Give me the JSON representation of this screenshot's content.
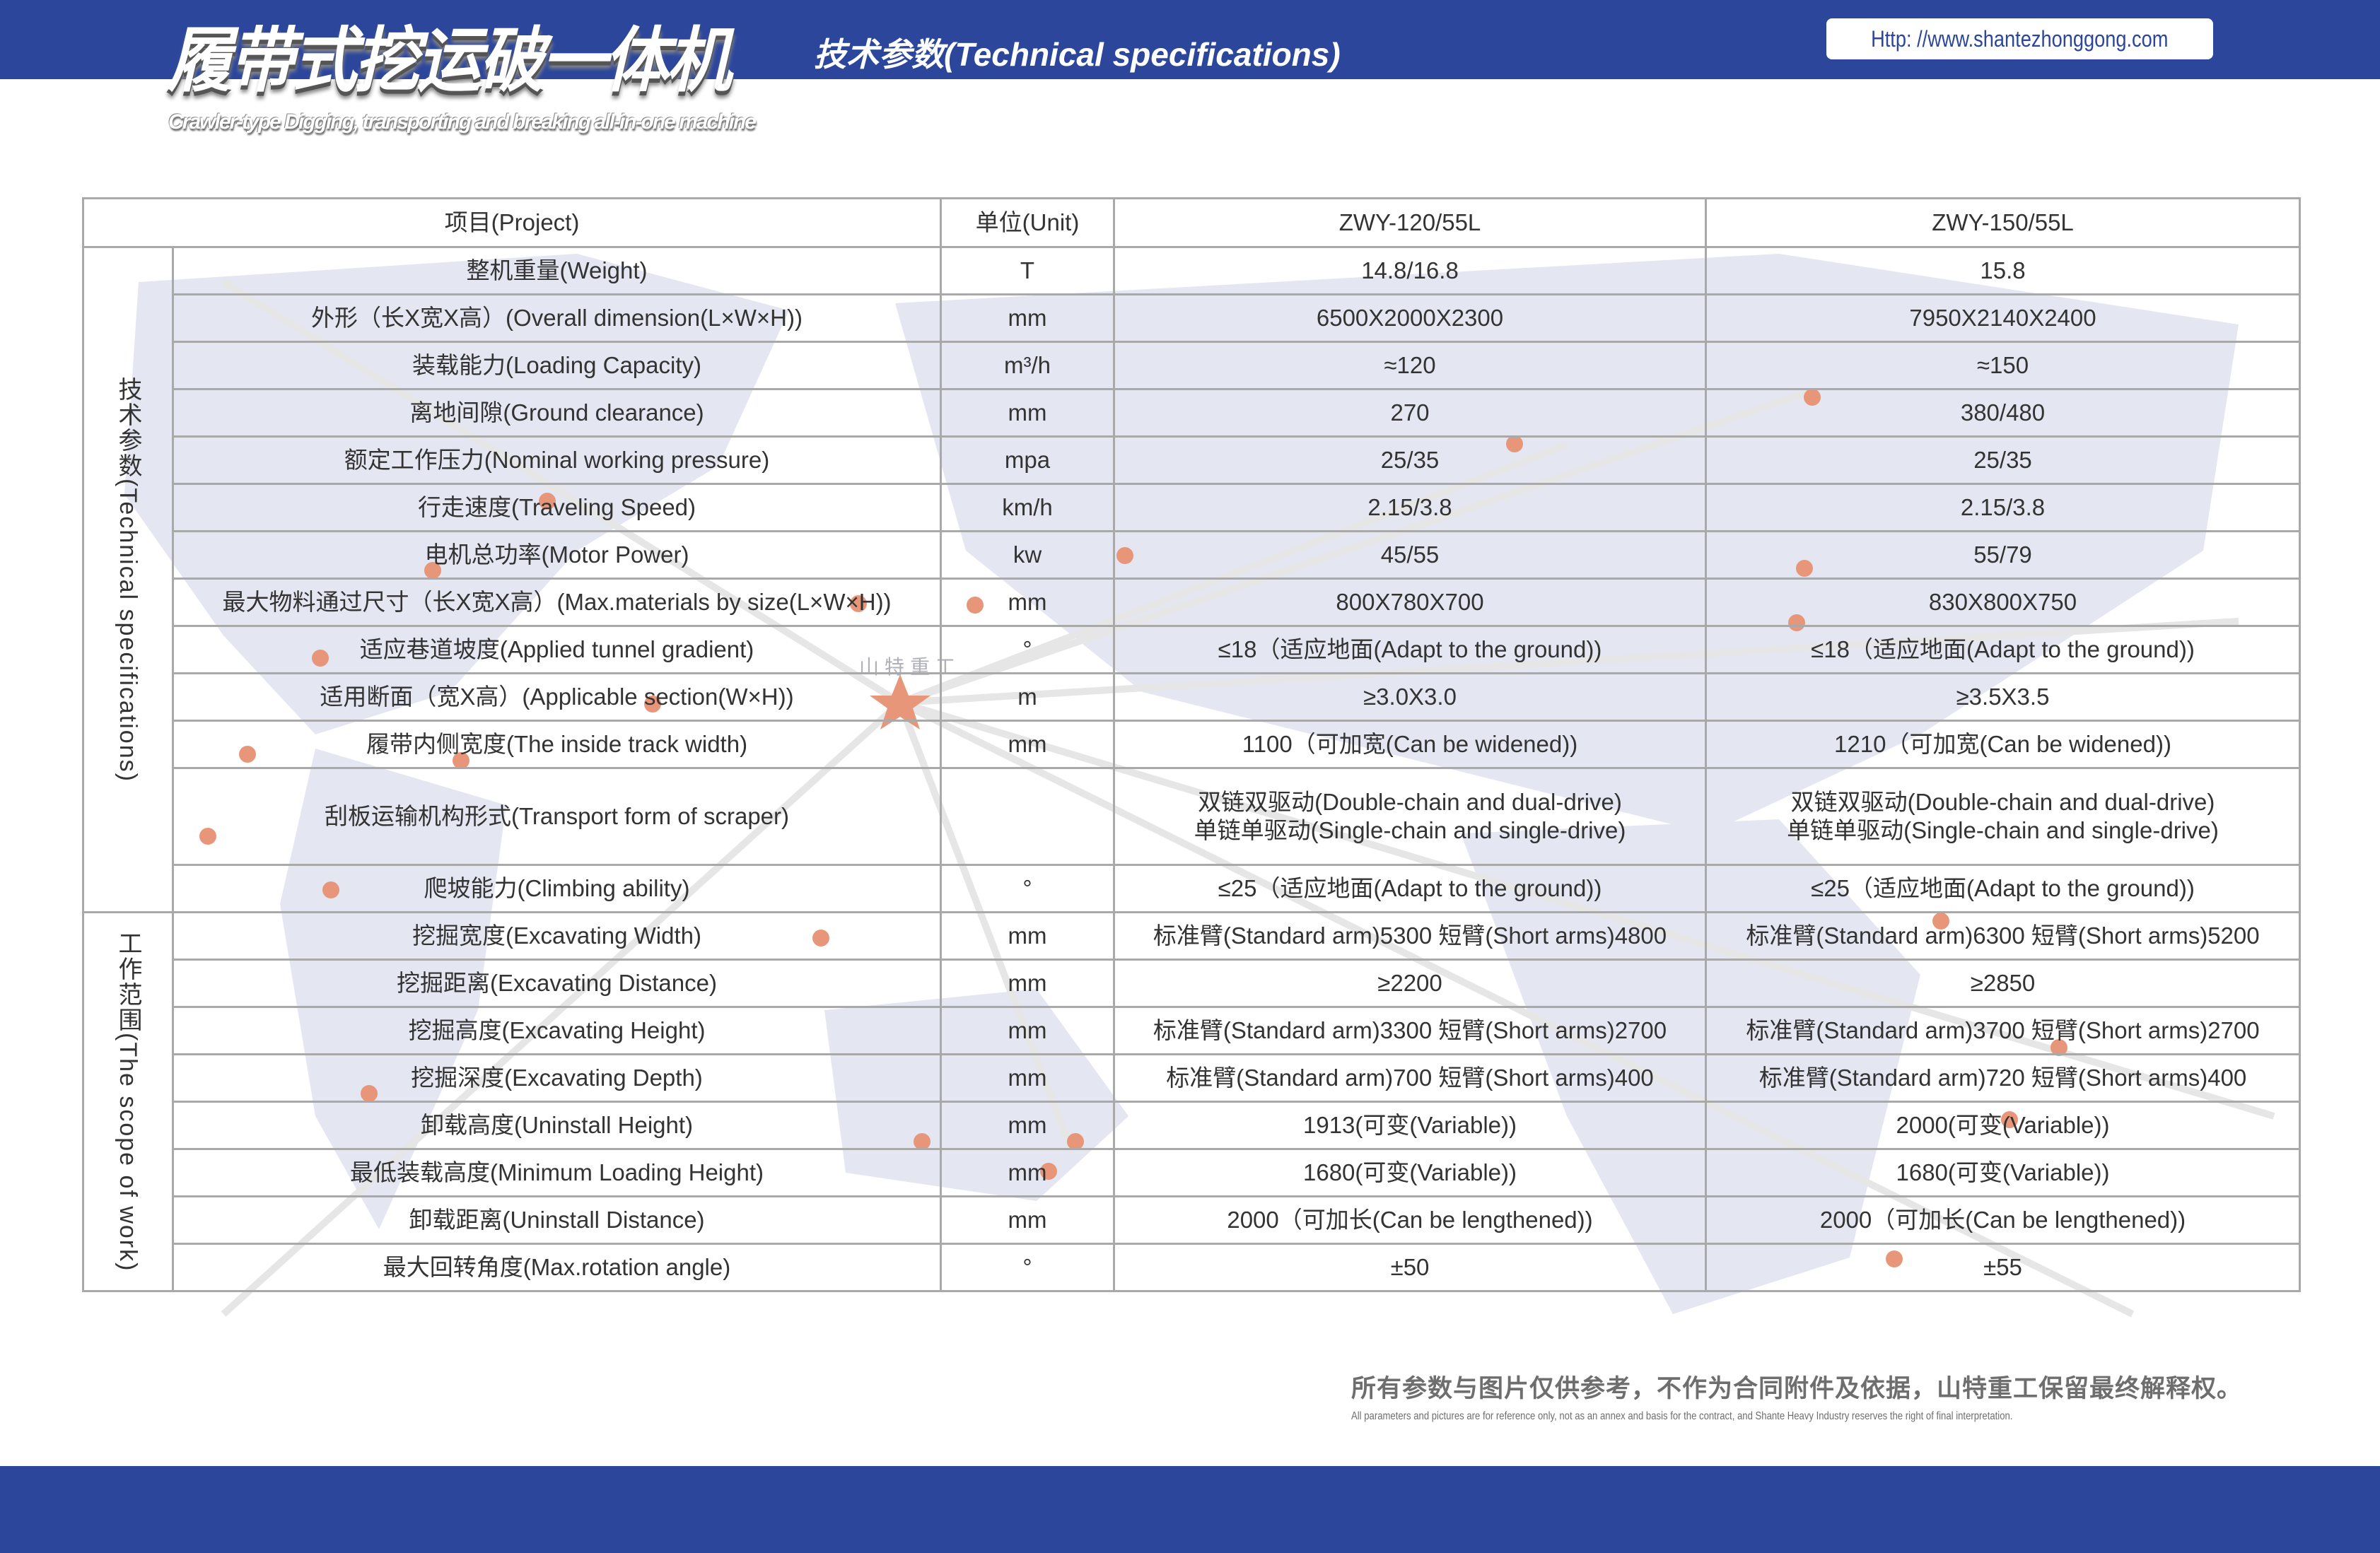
{
  "header": {
    "title": "履带式挖运破一体机",
    "subtitle": "Crawler-type Digging, transporting and breaking all-in-one machine",
    "section_heading": "技术参数(Technical specifications)",
    "url": "Http: //www.shantezhonggong.com"
  },
  "colors": {
    "brand_blue": "#2c469c",
    "map_dot": "#e8967a",
    "map_fill": "#e4e6f2"
  },
  "watermark": "山特重工",
  "table": {
    "headers": [
      "项目(Project)",
      "单位(Unit)",
      "ZWY-120/55L",
      "ZWY-150/55L"
    ],
    "groups": [
      {
        "label": "技术参数(Technical specifications)",
        "rows": [
          {
            "item": "整机重量(Weight)",
            "unit": "T",
            "a": "14.8/16.8",
            "b": "15.8"
          },
          {
            "item": "外形（长X宽X高）(Overall dimension(L×W×H))",
            "unit": "mm",
            "a": "6500X2000X2300",
            "b": "7950X2140X2400"
          },
          {
            "item": "装载能力(Loading Capacity)",
            "unit": "m³/h",
            "a": "≈120",
            "b": "≈150"
          },
          {
            "item": "离地间隙(Ground clearance)",
            "unit": "mm",
            "a": "270",
            "b": "380/480"
          },
          {
            "item": "额定工作压力(Nominal working pressure)",
            "unit": "mpa",
            "a": "25/35",
            "b": "25/35"
          },
          {
            "item": "行走速度(Traveling Speed)",
            "unit": "km/h",
            "a": "2.15/3.8",
            "b": "2.15/3.8"
          },
          {
            "item": "电机总功率(Motor Power)",
            "unit": "kw",
            "a": "45/55",
            "b": "55/79"
          },
          {
            "item": "最大物料通过尺寸（长X宽X高）(Max.materials by size(L×W×H))",
            "unit": "mm",
            "a": "800X780X700",
            "b": "830X800X750"
          },
          {
            "item": "适应巷道坡度(Applied tunnel gradient)",
            "unit": "°",
            "a": "≤18（适应地面(Adapt to the ground))",
            "b": "≤18（适应地面(Adapt to the ground))"
          },
          {
            "item": "适用断面（宽X高）(Applicable section(W×H))",
            "unit": "m",
            "a": "≥3.0X3.0",
            "b": "≥3.5X3.5"
          },
          {
            "item": "履带内侧宽度(The inside track width)",
            "unit": "mm",
            "a": "1100（可加宽(Can be widened))",
            "b": "1210（可加宽(Can be widened))"
          },
          {
            "item": "刮板运输机构形式(Transport form of scraper)",
            "unit": "",
            "a": "双链双驱动(Double-chain and dual-drive)",
            "a2": "单链单驱动(Single-chain and single-drive)",
            "b": "双链双驱动(Double-chain and dual-drive)",
            "b2": "单链单驱动(Single-chain and single-drive)"
          },
          {
            "item": "爬坡能力(Climbing ability)",
            "unit": "°",
            "a": "≤25（适应地面(Adapt to the ground))",
            "b": "≤25（适应地面(Adapt to the ground))"
          }
        ]
      },
      {
        "label": "工作范围(The scope of work)",
        "rows": [
          {
            "item": "挖掘宽度(Excavating Width)",
            "unit": "mm",
            "a": "标准臂(Standard arm)5300 短臂(Short arms)4800",
            "b": "标准臂(Standard arm)6300 短臂(Short arms)5200"
          },
          {
            "item": "挖掘距离(Excavating Distance)",
            "unit": "mm",
            "a": "≥2200",
            "b": "≥2850"
          },
          {
            "item": "挖掘高度(Excavating Height)",
            "unit": "mm",
            "a": "标准臂(Standard arm)3300 短臂(Short arms)2700",
            "b": "标准臂(Standard arm)3700 短臂(Short arms)2700"
          },
          {
            "item": "挖掘深度(Excavating Depth)",
            "unit": "mm",
            "a": "标准臂(Standard arm)700 短臂(Short arms)400",
            "b": "标准臂(Standard arm)720 短臂(Short arms)400"
          },
          {
            "item": "卸载高度(Uninstall Height)",
            "unit": "mm",
            "a": "1913(可变(Variable))",
            "b": "2000(可变(Variable))"
          },
          {
            "item": "最低装载高度(Minimum Loading Height)",
            "unit": "mm",
            "a": "1680(可变(Variable))",
            "b": "1680(可变(Variable))"
          },
          {
            "item": "卸载距离(Uninstall Distance)",
            "unit": "mm",
            "a": "2000（可加长(Can be lengthened))",
            "b": "2000（可加长(Can be lengthened))"
          },
          {
            "item": "最大回转角度(Max.rotation angle)",
            "unit": "°",
            "a": "±50",
            "b": "±55"
          }
        ]
      }
    ]
  },
  "footer": {
    "disclaimer_cn": "所有参数与图片仅供参考，不作为合同附件及依据，山特重工保留最终解释权。",
    "disclaimer_en": "All parameters and pictures are for reference only, not as an annex and basis for the contract, and Shante Heavy Industry reserves the right of final interpretation."
  }
}
